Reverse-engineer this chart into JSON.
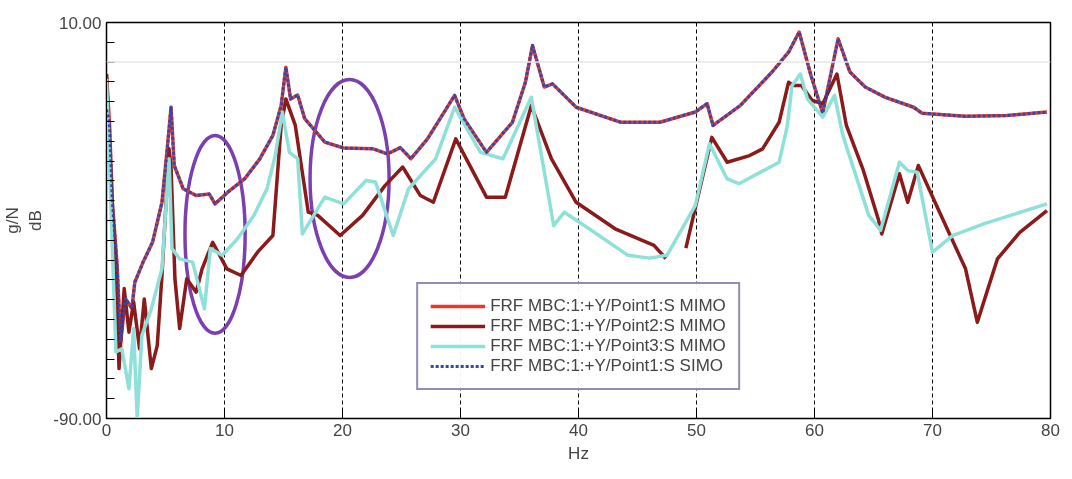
{
  "chart_data": {
    "type": "line",
    "xlabel": "Hz",
    "ylabel": "g/N\ndB",
    "xlim": [
      0,
      80
    ],
    "ylim": [
      -90,
      10
    ],
    "xticks": [
      0,
      10,
      20,
      30,
      40,
      50,
      60,
      70,
      80
    ],
    "yticks": [
      {
        "value": -90,
        "label": "-90.00"
      },
      {
        "value": -85,
        "label": null
      },
      {
        "value": -80,
        "label": null
      },
      {
        "value": -75,
        "label": null
      },
      {
        "value": -70,
        "label": null
      },
      {
        "value": -65,
        "label": null
      },
      {
        "value": -60,
        "label": null
      },
      {
        "value": -55,
        "label": null
      },
      {
        "value": -50,
        "label": null
      },
      {
        "value": -45,
        "label": null
      },
      {
        "value": -40,
        "label": null
      },
      {
        "value": -35,
        "label": null
      },
      {
        "value": -30,
        "label": null
      },
      {
        "value": -25,
        "label": null
      },
      {
        "value": -20,
        "label": null
      },
      {
        "value": -15,
        "label": null
      },
      {
        "value": -10,
        "label": null
      },
      {
        "value": -5,
        "label": null
      },
      {
        "value": 0,
        "label": null
      },
      {
        "value": 5,
        "label": null
      },
      {
        "value": 10,
        "label": "10.00"
      }
    ],
    "grid": "x",
    "legend": "bottom",
    "marker": "none",
    "ref_lines": [
      {
        "axis": "y",
        "value": 0,
        "label": null,
        "color": "#e6e6e6"
      }
    ],
    "series": [
      {
        "name": "FRF MBC:1:+Y/Point1:S MIMO",
        "color": "#e8392a",
        "line_style": "solid",
        "x": [
          0,
          0.25,
          0.5,
          0.9,
          1.2,
          1.6,
          2.15,
          2.4,
          3.1,
          3.9,
          4.7,
          5.15,
          5.47,
          5.74,
          6.5,
          7.6,
          8.7,
          9.2,
          10.3,
          11.7,
          13.0,
          14.1,
          14.8,
          15.2,
          15.6,
          16.2,
          16.8,
          18.5,
          20.1,
          22.6,
          23.8,
          24.9,
          25.8,
          27.2,
          29.5,
          30.3,
          32.2,
          34.4,
          35.5,
          36.1,
          37.1,
          37.8,
          39.8,
          43.6,
          46.9,
          49.9,
          50.9,
          51.4,
          53.7,
          56.4,
          57.8,
          58.7,
          59.7,
          60.7,
          61.3,
          62.0,
          63.0,
          64.3,
          66.0,
          68.4,
          69.1,
          72.8,
          76.3,
          79.7
        ],
        "values": [
          -3,
          -15.2,
          -35.4,
          -51.4,
          -70.7,
          -59.7,
          -62.2,
          -55.6,
          -50.5,
          -45.5,
          -35.4,
          -21.8,
          -11.4,
          -26.1,
          -32,
          -33.7,
          -33.3,
          -35.8,
          -32.8,
          -29.5,
          -24.4,
          -18.5,
          -11,
          -1.3,
          -9.3,
          -8.3,
          -14.3,
          -20.2,
          -21.7,
          -21.9,
          -23.2,
          -21.6,
          -24.4,
          -19.4,
          -8.4,
          -14.3,
          -22.8,
          -15.2,
          -5.1,
          4.2,
          -6.3,
          -5.5,
          -11.4,
          -15.2,
          -15.2,
          -12.6,
          -10.5,
          -16,
          -11,
          -2.5,
          2.5,
          7.6,
          -3.4,
          -12.9,
          -4.2,
          5.9,
          -2.5,
          -6.3,
          -8.9,
          -11.4,
          -12.9,
          -13.7,
          -13.5,
          -12.6
        ]
      },
      {
        "name": "FRF MBC:1:+Y/Point2:S MIMO",
        "color": "#8b1a1a",
        "line_style": "solid",
        "x": [
          0,
          0.5,
          0.8,
          1.06,
          1.5,
          1.9,
          2.3,
          2.8,
          3.2,
          3.8,
          4.3,
          4.7,
          5.3,
          5.47,
          5.8,
          6.2,
          6.8,
          7.6,
          8.1,
          9.0,
          10.2,
          11.4,
          12.8,
          14.1,
          14.8,
          15.2,
          16.0,
          17.1,
          17.9,
          19.8,
          21.7,
          23.6,
          25.1,
          26.6,
          27.7,
          29.6,
          32.2,
          33.8,
          36.0,
          37.7,
          39.8,
          43.1,
          46.4,
          47.4,
          48.2,
          49.1,
          51.3,
          52.6,
          54.5,
          55.6,
          57.0,
          57.8,
          58.2,
          58.9,
          59.8,
          60.7,
          61.9,
          62.7,
          64.1,
          65.4,
          65.7,
          67.2,
          67.9,
          68.8,
          70.6,
          72.8,
          73.8,
          74.7,
          75.5,
          77.4,
          79.7
        ],
        "values": [
          -3,
          -37.9,
          -50.5,
          -77.4,
          -57.2,
          -68.2,
          -60.6,
          -72.4,
          -59.8,
          -77.4,
          -71.6,
          -53.9,
          -21.9,
          -26.5,
          -54.7,
          -67.3,
          -54.7,
          -58.1,
          -52.2,
          -45.5,
          -52.2,
          -53.9,
          -48,
          -43.8,
          -16,
          -9.3,
          -16,
          -37.9,
          -38.7,
          -43.8,
          -38.7,
          -31.2,
          -26.5,
          -33.7,
          -35.4,
          -19.4,
          -34.1,
          -34.1,
          -11,
          -24.4,
          -35.4,
          -42.1,
          -46.3,
          -49.6,
          null,
          -47,
          -19,
          -25.3,
          -23.6,
          -21.9,
          -15.2,
          -5.1,
          -5.9,
          -5.9,
          -9.7,
          -10.5,
          -3,
          -16,
          -27,
          -39.6,
          -43.4,
          -28.2,
          -35.4,
          -26.1,
          -37.9,
          -52.2,
          -65.7,
          -57.2,
          -49.7,
          -43,
          -37.5
        ]
      },
      {
        "name": "FRF MBC:1:+Y/Point3:S MIMO",
        "color": "#8fe0d8",
        "line_style": "solid",
        "x": [
          0,
          0.4,
          0.8,
          1.3,
          1.9,
          2.3,
          2.6,
          3.0,
          3.8,
          4.7,
          5.3,
          5.55,
          6.2,
          7.3,
          8.3,
          8.8,
          9.8,
          11.1,
          12.5,
          13.6,
          14.3,
          14.9,
          15.5,
          16.2,
          16.6,
          18.5,
          20.1,
          22.0,
          22.8,
          24.3,
          25.6,
          27.9,
          29.5,
          31.7,
          33.6,
          36.0,
          37.9,
          38.8,
          40.9,
          44.2,
          46.0,
          47.5,
          49.9,
          51.1,
          52.6,
          53.6,
          57.0,
          57.7,
          58.1,
          58.8,
          59.4,
          60.7,
          61.7,
          62.4,
          64.6,
          65.6,
          67.2,
          67.9,
          68.7,
          70.0,
          71.7,
          74.4,
          79.7
        ],
        "values": [
          -4.2,
          -38.7,
          -73.2,
          -72.4,
          -82.5,
          -67.3,
          -90,
          -69,
          -62.3,
          -52.2,
          -24.4,
          -47.1,
          -49.7,
          -50.5,
          -62.3,
          -47.1,
          -48.8,
          -44.6,
          -38.7,
          -32,
          -23.6,
          -12.6,
          -22.8,
          -24.4,
          -43.4,
          -34.1,
          -35.8,
          -29.9,
          -30.3,
          -43.8,
          -32,
          -24.4,
          -11.4,
          -22.8,
          -24.4,
          -8.9,
          -41.3,
          -37.9,
          -42.1,
          -48.8,
          -49.5,
          -48.8,
          -36.2,
          -20.6,
          -29.5,
          -30.7,
          -25.3,
          -16,
          -5.9,
          -3,
          -9.3,
          -13.9,
          -8.4,
          -18.5,
          -38.7,
          -42.5,
          -25.3,
          -27.4,
          -27.8,
          -48,
          -43.8,
          -40.8,
          -35.8
        ]
      },
      {
        "name": "FRF MBC:1:+Y/Point1:S SIMO",
        "color": "#3048b0",
        "line_style": "dotted",
        "x": [
          0,
          0.25,
          0.5,
          0.9,
          1.2,
          1.6,
          2.15,
          2.4,
          3.1,
          3.9,
          4.7,
          5.15,
          5.47,
          5.74,
          6.5,
          7.6,
          8.7,
          9.2,
          10.3,
          11.7,
          13.0,
          14.1,
          14.8,
          15.2,
          15.6,
          16.2,
          16.8,
          18.5,
          20.1,
          22.6,
          23.8,
          24.9,
          25.8,
          27.2,
          29.5,
          30.3,
          32.2,
          34.4,
          35.5,
          36.1,
          37.1,
          37.8,
          39.8,
          43.6,
          46.9,
          49.9,
          50.9,
          51.4,
          53.7,
          56.4,
          57.8,
          58.7,
          59.7,
          60.7,
          61.3,
          62.0,
          63.0,
          64.3,
          66.0,
          68.4,
          69.1,
          72.8,
          76.3,
          79.7
        ],
        "values": [
          -12,
          -15.2,
          -35.4,
          -51.4,
          -70.7,
          -59.7,
          -62.2,
          -55.6,
          -50.5,
          -45.5,
          -35.4,
          -21.8,
          -11.4,
          -26.1,
          -32,
          -33.7,
          -33.3,
          -35.8,
          -32.8,
          -29.5,
          -24.4,
          -18.5,
          -11,
          -1.3,
          -9.3,
          -8.3,
          -14.3,
          -20.2,
          -21.7,
          -21.9,
          -23.2,
          -21.6,
          -24.4,
          -19.4,
          -8.4,
          -14.3,
          -22.8,
          -15.2,
          -5.1,
          4.2,
          -6.3,
          -5.5,
          -11.4,
          -15.2,
          -15.2,
          -12.6,
          -10.5,
          -16,
          -11,
          -2.5,
          2.5,
          7.6,
          -3.4,
          -12.9,
          -4.2,
          5.9,
          -2.5,
          -6.3,
          -8.9,
          -11.4,
          -12.9,
          -13.7,
          -13.5,
          -12.6
        ]
      }
    ]
  }
}
